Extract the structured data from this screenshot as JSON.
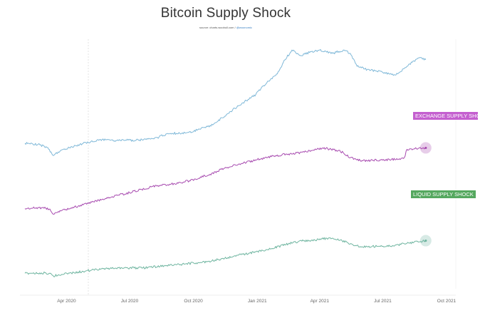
{
  "title": "Bitcoin Supply Shock",
  "source": {
    "prefix": "source: charts.woobull.com / ",
    "handle": "@woonomic"
  },
  "chart_data": {
    "type": "line",
    "title": "Bitcoin Supply Shock",
    "xlabel": "",
    "ylabel": "",
    "x_range": [
      "2020-02-01",
      "2021-10-01"
    ],
    "x_ticks": [
      "Apr 2020",
      "Jul 2020",
      "Oct 2020",
      "Jan 2021",
      "Apr 2021",
      "Jul 2021",
      "Oct 2021"
    ],
    "grid": false,
    "series": [
      {
        "name": "",
        "color": "#7fb8d8",
        "values": [
          [
            "2020-02-01",
            0.58
          ],
          [
            "2020-02-20",
            0.56
          ],
          [
            "2020-03-05",
            0.5
          ],
          [
            "2020-03-12",
            0.36
          ],
          [
            "2020-03-20",
            0.42
          ],
          [
            "2020-04-05",
            0.5
          ],
          [
            "2020-04-25",
            0.58
          ],
          [
            "2020-05-20",
            0.65
          ],
          [
            "2020-06-15",
            0.63
          ],
          [
            "2020-07-15",
            0.64
          ],
          [
            "2020-08-05",
            0.66
          ],
          [
            "2020-08-25",
            0.76
          ],
          [
            "2020-09-20",
            0.77
          ],
          [
            "2020-10-10",
            0.84
          ],
          [
            "2020-10-30",
            0.93
          ],
          [
            "2020-11-20",
            1.13
          ],
          [
            "2020-12-10",
            1.32
          ],
          [
            "2020-12-30",
            1.48
          ],
          [
            "2021-01-15",
            1.7
          ],
          [
            "2021-01-30",
            1.86
          ],
          [
            "2021-02-10",
            2.12
          ],
          [
            "2021-02-20",
            2.3
          ],
          [
            "2021-03-05",
            2.2
          ],
          [
            "2021-03-20",
            2.27
          ],
          [
            "2021-04-01",
            2.3
          ],
          [
            "2021-04-20",
            2.24
          ],
          [
            "2021-05-05",
            2.3
          ],
          [
            "2021-05-15",
            2.24
          ],
          [
            "2021-05-25",
            2.0
          ],
          [
            "2021-06-05",
            1.95
          ],
          [
            "2021-06-20",
            1.92
          ],
          [
            "2021-07-05",
            1.87
          ],
          [
            "2021-07-20",
            1.84
          ],
          [
            "2021-08-01",
            1.96
          ],
          [
            "2021-08-15",
            2.1
          ],
          [
            "2021-08-25",
            2.16
          ],
          [
            "2021-09-01",
            2.12
          ]
        ]
      },
      {
        "name": "EXCHANGE SUPPLY SHOCK",
        "color": "#a84cb0",
        "values": [
          [
            "2020-02-01",
            0.34
          ],
          [
            "2020-02-25",
            0.36
          ],
          [
            "2020-03-08",
            0.33
          ],
          [
            "2020-03-13",
            0.22
          ],
          [
            "2020-03-25",
            0.3
          ],
          [
            "2020-04-25",
            0.42
          ],
          [
            "2020-06-01",
            0.58
          ],
          [
            "2020-07-01",
            0.68
          ],
          [
            "2020-08-01",
            0.8
          ],
          [
            "2020-08-30",
            0.86
          ],
          [
            "2020-09-25",
            0.93
          ],
          [
            "2020-10-25",
            1.07
          ],
          [
            "2020-11-15",
            1.2
          ],
          [
            "2020-12-10",
            1.3
          ],
          [
            "2021-01-01",
            1.38
          ],
          [
            "2021-01-25",
            1.46
          ],
          [
            "2021-02-15",
            1.5
          ],
          [
            "2021-03-10",
            1.54
          ],
          [
            "2021-03-28",
            1.6
          ],
          [
            "2021-04-10",
            1.62
          ],
          [
            "2021-04-25",
            1.58
          ],
          [
            "2021-05-05",
            1.53
          ],
          [
            "2021-05-15",
            1.42
          ],
          [
            "2021-06-01",
            1.36
          ],
          [
            "2021-07-01",
            1.37
          ],
          [
            "2021-07-25",
            1.4
          ],
          [
            "2021-08-01",
            1.42
          ],
          [
            "2021-08-05",
            1.6
          ],
          [
            "2021-08-25",
            1.62
          ],
          [
            "2021-09-01",
            1.63
          ]
        ]
      },
      {
        "name": "LIQUID SUPPLY SHOCK",
        "color": "#6fb5a0",
        "values": [
          [
            "2020-02-01",
            0.22
          ],
          [
            "2020-02-25",
            0.23
          ],
          [
            "2020-03-08",
            0.22
          ],
          [
            "2020-03-13",
            0.15
          ],
          [
            "2020-03-25",
            0.19
          ],
          [
            "2020-04-25",
            0.27
          ],
          [
            "2020-05-25",
            0.35
          ],
          [
            "2020-06-20",
            0.36
          ],
          [
            "2020-07-20",
            0.36
          ],
          [
            "2020-08-20",
            0.42
          ],
          [
            "2020-09-20",
            0.47
          ],
          [
            "2020-10-20",
            0.52
          ],
          [
            "2020-11-20",
            0.64
          ],
          [
            "2020-12-20",
            0.75
          ],
          [
            "2021-01-20",
            0.86
          ],
          [
            "2021-02-15",
            1.0
          ],
          [
            "2021-03-10",
            1.08
          ],
          [
            "2021-03-25",
            1.1
          ],
          [
            "2021-04-15",
            1.15
          ],
          [
            "2021-05-01",
            1.1
          ],
          [
            "2021-05-12",
            1.02
          ],
          [
            "2021-05-20",
            0.95
          ],
          [
            "2021-06-01",
            0.92
          ],
          [
            "2021-06-25",
            0.93
          ],
          [
            "2021-07-15",
            0.95
          ],
          [
            "2021-08-01",
            1.0
          ],
          [
            "2021-08-25",
            1.06
          ],
          [
            "2021-09-01",
            1.08
          ]
        ]
      }
    ]
  }
}
